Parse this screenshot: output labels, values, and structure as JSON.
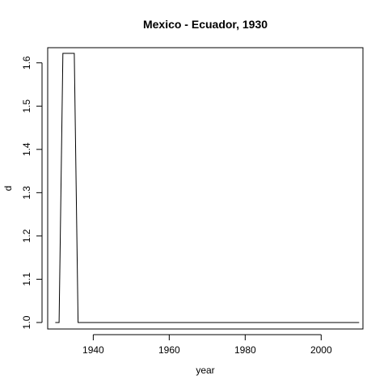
{
  "chart_data": {
    "type": "line",
    "title": "Mexico - Ecuador, 1930",
    "xlabel": "year",
    "ylabel": "d",
    "xlim": [
      1928,
      2011
    ],
    "ylim": [
      0.985,
      1.635
    ],
    "xticks": [
      1940,
      1960,
      1980,
      2000
    ],
    "yticks": [
      1.0,
      1.1,
      1.2,
      1.3,
      1.4,
      1.5,
      1.6
    ],
    "ytick_labels": [
      "1.0",
      "1.1",
      "1.2",
      "1.3",
      "1.4",
      "1.5",
      "1.6"
    ],
    "grid": false,
    "series": [
      {
        "x": [
          1930,
          1931,
          1932,
          1933,
          1934,
          1935,
          1936,
          1937,
          2010
        ],
        "y": [
          1.0,
          1.0,
          1.622,
          1.622,
          1.622,
          1.622,
          1.0,
          1.0,
          1.0
        ]
      }
    ]
  }
}
